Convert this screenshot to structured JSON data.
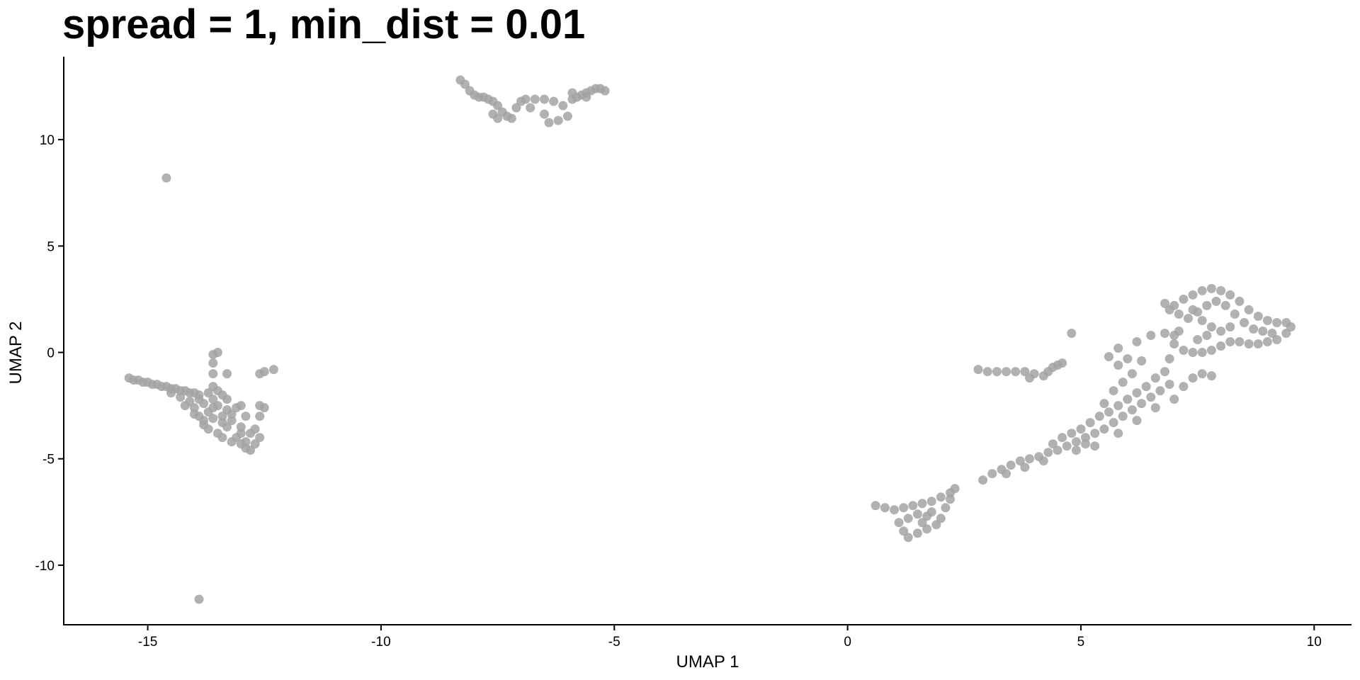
{
  "chart_data": {
    "type": "scatter",
    "title": "spread = 1, min_dist = 0.01",
    "xlabel": "UMAP 1",
    "ylabel": "UMAP 2",
    "xlim": [
      -16.8,
      10.8
    ],
    "ylim": [
      -12.8,
      13.9
    ],
    "xticks": [
      -15,
      -10,
      -5,
      0,
      5,
      10
    ],
    "yticks": [
      -10,
      -5,
      0,
      5,
      10
    ],
    "grid": false,
    "legend": "none",
    "point_color": "#a3a3a3",
    "series": [
      {
        "points": [
          [
            -15.4,
            -1.2
          ],
          [
            -15.3,
            -1.3
          ],
          [
            -15.2,
            -1.3
          ],
          [
            -15.1,
            -1.4
          ],
          [
            -15.0,
            -1.4
          ],
          [
            -14.9,
            -1.5
          ],
          [
            -14.8,
            -1.5
          ],
          [
            -14.7,
            -1.6
          ],
          [
            -14.6,
            -1.6
          ],
          [
            -14.5,
            -1.7
          ],
          [
            -14.4,
            -1.7
          ],
          [
            -14.3,
            -1.8
          ],
          [
            -14.2,
            -1.8
          ],
          [
            -14.1,
            -1.9
          ],
          [
            -14.0,
            -1.9
          ],
          [
            -13.9,
            -2.0
          ],
          [
            -14.5,
            -1.9
          ],
          [
            -14.3,
            -2.1
          ],
          [
            -14.1,
            -2.3
          ],
          [
            -14.0,
            -2.6
          ],
          [
            -13.9,
            -2.2
          ],
          [
            -13.8,
            -2.4
          ],
          [
            -13.7,
            -2.8
          ],
          [
            -13.6,
            -2.2
          ],
          [
            -13.5,
            -2.5
          ],
          [
            -13.4,
            -3.0
          ],
          [
            -13.3,
            -2.7
          ],
          [
            -13.2,
            -3.2
          ],
          [
            -13.1,
            -2.6
          ],
          [
            -13.0,
            -3.5
          ],
          [
            -12.9,
            -3.0
          ],
          [
            -12.8,
            -3.8
          ],
          [
            -13.9,
            -3.0
          ],
          [
            -13.8,
            -3.4
          ],
          [
            -13.7,
            -3.6
          ],
          [
            -13.6,
            -3.1
          ],
          [
            -13.5,
            -3.8
          ],
          [
            -13.4,
            -4.0
          ],
          [
            -13.3,
            -3.5
          ],
          [
            -13.2,
            -4.2
          ],
          [
            -13.1,
            -4.0
          ],
          [
            -13.0,
            -4.3
          ],
          [
            -12.9,
            -4.5
          ],
          [
            -12.8,
            -4.6
          ],
          [
            -12.9,
            -4.2
          ],
          [
            -12.7,
            -4.3
          ],
          [
            -12.6,
            -4.0
          ],
          [
            -12.7,
            -3.6
          ],
          [
            -12.6,
            -3.0
          ],
          [
            -12.5,
            -2.6
          ],
          [
            -12.6,
            -2.5
          ],
          [
            -13.0,
            -2.5
          ],
          [
            -13.6,
            -1.6
          ],
          [
            -13.7,
            -1.9
          ],
          [
            -13.4,
            -2.0
          ],
          [
            -13.5,
            -1.8
          ],
          [
            -13.3,
            -2.2
          ],
          [
            -14.2,
            -2.5
          ],
          [
            -14.0,
            -2.9
          ],
          [
            -13.8,
            -3.2
          ],
          [
            -13.6,
            -2.6
          ],
          [
            -13.4,
            -3.3
          ],
          [
            -13.2,
            -2.9
          ],
          [
            -13.0,
            -3.8
          ],
          [
            -13.6,
            -0.1
          ],
          [
            -13.6,
            -0.5
          ],
          [
            -13.5,
            0.0
          ],
          [
            -13.6,
            -1.0
          ],
          [
            -13.3,
            -1.0
          ],
          [
            -12.3,
            -0.8
          ],
          [
            -12.5,
            -0.9
          ],
          [
            -12.6,
            -1.0
          ],
          [
            -14.6,
            8.2
          ],
          [
            -13.9,
            -11.6
          ],
          [
            -8.3,
            12.8
          ],
          [
            -8.2,
            12.6
          ],
          [
            -8.1,
            12.3
          ],
          [
            -8.0,
            12.1
          ],
          [
            -7.9,
            12.0
          ],
          [
            -7.8,
            12.0
          ],
          [
            -7.7,
            11.9
          ],
          [
            -7.6,
            11.8
          ],
          [
            -7.5,
            11.6
          ],
          [
            -7.4,
            11.3
          ],
          [
            -7.3,
            11.1
          ],
          [
            -7.5,
            11.0
          ],
          [
            -7.6,
            11.2
          ],
          [
            -7.2,
            11.0
          ],
          [
            -7.1,
            11.5
          ],
          [
            -7.0,
            11.8
          ],
          [
            -6.9,
            11.9
          ],
          [
            -6.7,
            11.9
          ],
          [
            -6.5,
            11.9
          ],
          [
            -6.3,
            11.8
          ],
          [
            -6.1,
            11.6
          ],
          [
            -6.0,
            11.1
          ],
          [
            -6.2,
            10.9
          ],
          [
            -6.4,
            10.8
          ],
          [
            -6.5,
            11.2
          ],
          [
            -6.8,
            11.5
          ],
          [
            -5.9,
            11.9
          ],
          [
            -5.8,
            12.0
          ],
          [
            -5.7,
            12.1
          ],
          [
            -5.6,
            12.2
          ],
          [
            -5.5,
            12.3
          ],
          [
            -5.4,
            12.4
          ],
          [
            -5.3,
            12.4
          ],
          [
            -5.2,
            12.3
          ],
          [
            -5.6,
            12.0
          ],
          [
            -5.9,
            12.2
          ],
          [
            2.8,
            -0.8
          ],
          [
            3.0,
            -0.9
          ],
          [
            3.2,
            -0.9
          ],
          [
            3.4,
            -0.9
          ],
          [
            3.6,
            -0.9
          ],
          [
            3.8,
            -0.9
          ],
          [
            4.0,
            -1.0
          ],
          [
            4.2,
            -1.1
          ],
          [
            4.3,
            -0.9
          ],
          [
            4.4,
            -0.7
          ],
          [
            4.5,
            -0.6
          ],
          [
            4.6,
            -0.5
          ],
          [
            3.9,
            -1.2
          ],
          [
            4.8,
            0.9
          ],
          [
            0.6,
            -7.2
          ],
          [
            0.8,
            -7.3
          ],
          [
            1.0,
            -7.4
          ],
          [
            1.2,
            -7.3
          ],
          [
            1.4,
            -7.2
          ],
          [
            1.6,
            -7.1
          ],
          [
            1.8,
            -7.0
          ],
          [
            2.0,
            -6.8
          ],
          [
            2.2,
            -6.6
          ],
          [
            2.3,
            -6.4
          ],
          [
            2.2,
            -6.9
          ],
          [
            2.1,
            -7.3
          ],
          [
            2.0,
            -7.8
          ],
          [
            1.9,
            -8.1
          ],
          [
            1.7,
            -8.3
          ],
          [
            1.5,
            -8.5
          ],
          [
            1.3,
            -8.7
          ],
          [
            1.2,
            -8.4
          ],
          [
            1.1,
            -8.0
          ],
          [
            1.3,
            -7.8
          ],
          [
            1.5,
            -7.6
          ],
          [
            1.7,
            -7.7
          ],
          [
            1.8,
            -7.5
          ],
          [
            1.6,
            -8.0
          ],
          [
            2.9,
            -6.0
          ],
          [
            3.1,
            -5.7
          ],
          [
            3.3,
            -5.5
          ],
          [
            3.5,
            -5.3
          ],
          [
            3.7,
            -5.1
          ],
          [
            3.9,
            -5.0
          ],
          [
            4.1,
            -4.9
          ],
          [
            4.3,
            -4.7
          ],
          [
            4.5,
            -4.6
          ],
          [
            4.7,
            -4.4
          ],
          [
            4.9,
            -4.2
          ],
          [
            5.1,
            -4.0
          ],
          [
            5.3,
            -3.8
          ],
          [
            5.5,
            -3.6
          ],
          [
            5.7,
            -3.3
          ],
          [
            5.9,
            -3.0
          ],
          [
            6.1,
            -2.7
          ],
          [
            6.3,
            -2.4
          ],
          [
            6.5,
            -2.1
          ],
          [
            6.7,
            -1.8
          ],
          [
            6.9,
            -1.5
          ],
          [
            4.4,
            -4.3
          ],
          [
            4.6,
            -4.0
          ],
          [
            4.8,
            -3.8
          ],
          [
            5.0,
            -3.6
          ],
          [
            5.2,
            -3.3
          ],
          [
            5.4,
            -3.0
          ],
          [
            5.6,
            -2.8
          ],
          [
            5.8,
            -2.5
          ],
          [
            6.0,
            -2.2
          ],
          [
            6.2,
            -1.9
          ],
          [
            6.4,
            -1.6
          ],
          [
            6.6,
            -1.2
          ],
          [
            6.8,
            -0.9
          ],
          [
            5.5,
            -2.4
          ],
          [
            5.7,
            -1.8
          ],
          [
            5.9,
            -1.4
          ],
          [
            6.1,
            -1.0
          ],
          [
            5.8,
            -0.6
          ],
          [
            6.0,
            -0.3
          ],
          [
            6.3,
            -0.4
          ],
          [
            5.6,
            -0.2
          ],
          [
            5.8,
            0.2
          ],
          [
            6.2,
            0.5
          ],
          [
            6.5,
            0.8
          ],
          [
            6.8,
            0.9
          ],
          [
            7.0,
            0.8
          ],
          [
            7.1,
            1.0
          ],
          [
            4.9,
            -4.6
          ],
          [
            5.3,
            -4.4
          ],
          [
            5.1,
            -4.3
          ],
          [
            4.2,
            -5.1
          ],
          [
            3.8,
            -5.4
          ],
          [
            3.4,
            -5.7
          ],
          [
            5.8,
            -3.8
          ],
          [
            6.2,
            -3.2
          ],
          [
            6.6,
            -2.6
          ],
          [
            7.0,
            -2.2
          ],
          [
            7.2,
            -1.6
          ],
          [
            7.4,
            -1.2
          ],
          [
            7.6,
            -1.0
          ],
          [
            7.8,
            -1.1
          ],
          [
            6.9,
            -0.3
          ],
          [
            7.0,
            2.2
          ],
          [
            7.2,
            2.5
          ],
          [
            7.4,
            2.7
          ],
          [
            7.6,
            2.9
          ],
          [
            7.8,
            3.0
          ],
          [
            8.0,
            2.9
          ],
          [
            8.2,
            2.7
          ],
          [
            8.4,
            2.4
          ],
          [
            8.6,
            2.0
          ],
          [
            8.8,
            1.7
          ],
          [
            9.0,
            1.5
          ],
          [
            9.2,
            1.4
          ],
          [
            9.4,
            1.4
          ],
          [
            9.5,
            1.2
          ],
          [
            9.4,
            0.9
          ],
          [
            9.2,
            0.6
          ],
          [
            9.0,
            0.5
          ],
          [
            8.8,
            0.4
          ],
          [
            8.6,
            0.4
          ],
          [
            8.4,
            0.5
          ],
          [
            8.2,
            0.5
          ],
          [
            8.0,
            0.3
          ],
          [
            7.8,
            0.1
          ],
          [
            7.6,
            0.0
          ],
          [
            7.4,
            0.0
          ],
          [
            7.2,
            0.1
          ],
          [
            7.0,
            0.4
          ],
          [
            7.3,
            1.6
          ],
          [
            7.5,
            1.9
          ],
          [
            7.7,
            2.2
          ],
          [
            7.9,
            2.4
          ],
          [
            8.1,
            2.2
          ],
          [
            8.3,
            1.8
          ],
          [
            8.5,
            1.4
          ],
          [
            8.7,
            1.1
          ],
          [
            8.9,
            1.0
          ],
          [
            9.1,
            0.9
          ],
          [
            7.4,
            2.0
          ],
          [
            7.6,
            1.5
          ],
          [
            7.8,
            1.2
          ],
          [
            8.0,
            1.0
          ],
          [
            8.2,
            1.2
          ],
          [
            7.1,
            1.8
          ],
          [
            6.9,
            2.0
          ],
          [
            6.8,
            2.3
          ],
          [
            7.5,
            0.6
          ],
          [
            7.7,
            0.8
          ]
        ]
      }
    ]
  }
}
